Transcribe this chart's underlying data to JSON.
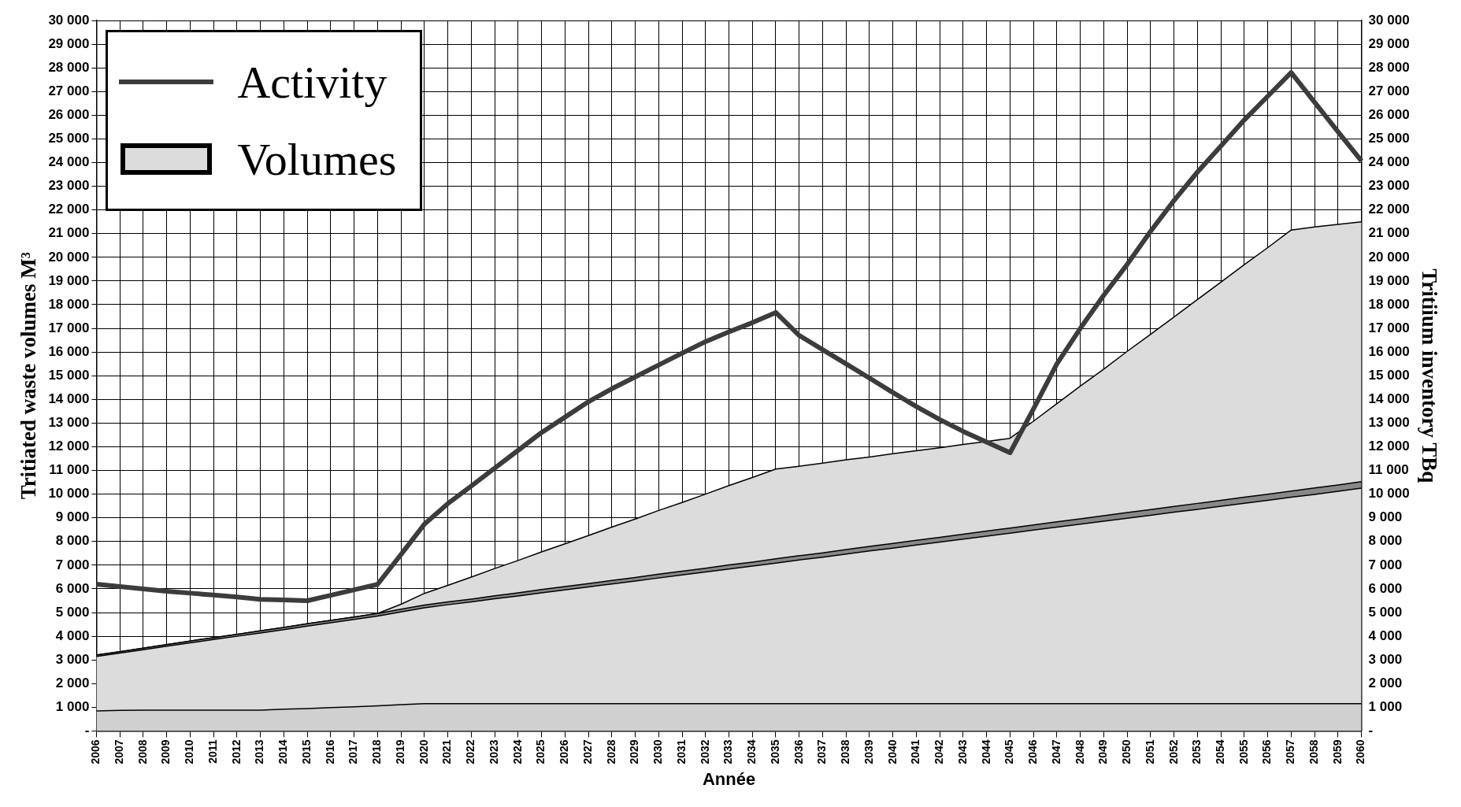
{
  "chart_data": {
    "type": "area",
    "stacked": true,
    "xlabel": "Année",
    "ylabel": "Tritiated waste volumes M³",
    "y2label": "Tritiium inventory TBq",
    "categories": [
      "2006",
      "2007",
      "2008",
      "2009",
      "2010",
      "2011",
      "2012",
      "2013",
      "2014",
      "2015",
      "2016",
      "2017",
      "2018",
      "2019",
      "2020",
      "2021",
      "2022",
      "2023",
      "2024",
      "2025",
      "2026",
      "2027",
      "2028",
      "2029",
      "2030",
      "2031",
      "2032",
      "2033",
      "2034",
      "2035",
      "2036",
      "2037",
      "2038",
      "2039",
      "2040",
      "2041",
      "2042",
      "2043",
      "2044",
      "2045",
      "2046",
      "2047",
      "2048",
      "2049",
      "2050",
      "2051",
      "2052",
      "2053",
      "2054",
      "2055",
      "2056",
      "2057",
      "2058",
      "2059",
      "2060"
    ],
    "series": [
      {
        "color": "#d0d0d0",
        "values": [
          850,
          870,
          880,
          880,
          880,
          880,
          880,
          880,
          920,
          950,
          990,
          1020,
          1060,
          1110,
          1150,
          1150,
          1150,
          1150,
          1150,
          1150,
          1150,
          1150,
          1150,
          1150,
          1150,
          1150,
          1150,
          1150,
          1150,
          1150,
          1150,
          1150,
          1150,
          1150,
          1150,
          1150,
          1150,
          1150,
          1150,
          1150,
          1150,
          1150,
          1150,
          1150,
          1150,
          1150,
          1150,
          1150,
          1150,
          1150,
          1150,
          1150,
          1150,
          1150,
          1150
        ]
      },
      {
        "name": "Volumes",
        "color": "#dcdcdc",
        "values": [
          2300,
          2420,
          2550,
          2700,
          2840,
          2980,
          3120,
          3260,
          3360,
          3480,
          3580,
          3690,
          3790,
          3920,
          4050,
          4180,
          4300,
          4430,
          4550,
          4680,
          4810,
          4930,
          5060,
          5180,
          5310,
          5440,
          5560,
          5690,
          5810,
          5940,
          6070,
          6190,
          6320,
          6450,
          6570,
          6700,
          6830,
          6950,
          7080,
          7200,
          7330,
          7460,
          7580,
          7710,
          7830,
          7960,
          8090,
          8210,
          8340,
          8460,
          8590,
          8720,
          8840,
          8970,
          9100
        ]
      },
      {
        "color": "#888888",
        "values": [
          60,
          60,
          70,
          70,
          80,
          80,
          80,
          90,
          90,
          100,
          100,
          100,
          110,
          110,
          120,
          120,
          120,
          130,
          130,
          140,
          140,
          140,
          150,
          150,
          160,
          160,
          160,
          170,
          170,
          180,
          180,
          180,
          190,
          190,
          200,
          200,
          200,
          210,
          210,
          220,
          220,
          220,
          230,
          230,
          240,
          240,
          240,
          250,
          250,
          260,
          260,
          260,
          270,
          270,
          280
        ]
      },
      {
        "color": "#dcdcdc",
        "values": [
          0,
          0,
          0,
          0,
          0,
          0,
          0,
          0,
          0,
          0,
          0,
          0,
          0,
          210,
          490,
          700,
          930,
          1150,
          1370,
          1590,
          1800,
          2030,
          2250,
          2470,
          2690,
          2900,
          3130,
          3350,
          3570,
          3790,
          3780,
          3790,
          3790,
          3780,
          3790,
          3780,
          3780,
          3790,
          3780,
          3790,
          4380,
          4990,
          5600,
          6190,
          6810,
          7400,
          8000,
          8610,
          9210,
          9820,
          10410,
          11020,
          11020,
          11000,
          10970
        ]
      },
      {
        "name": "Activity",
        "type": "line",
        "axis": "y2",
        "color": "#3c3c3c",
        "values": [
          6200,
          6100,
          6000,
          5900,
          5820,
          5740,
          5660,
          5560,
          5530,
          5500,
          5730,
          5960,
          6190,
          7450,
          8730,
          9600,
          10340,
          11100,
          11850,
          12600,
          13250,
          13900,
          14450,
          14950,
          15450,
          15950,
          16440,
          16850,
          17240,
          17670,
          16700,
          16100,
          15500,
          14900,
          14290,
          13700,
          13150,
          12650,
          12200,
          11750,
          13600,
          15500,
          17000,
          18400,
          19700,
          21100,
          22400,
          23600,
          24700,
          25800,
          26800,
          27800,
          26550,
          25300,
          24070
        ]
      }
    ],
    "ylim": [
      0,
      30000
    ],
    "yticks": [
      {
        "value": 0,
        "label": "-"
      },
      {
        "value": 1000,
        "label": "1 000"
      },
      {
        "value": 2000,
        "label": "2 000"
      },
      {
        "value": 3000,
        "label": "3 000"
      },
      {
        "value": 4000,
        "label": "4 000"
      },
      {
        "value": 5000,
        "label": "5 000"
      },
      {
        "value": 6000,
        "label": "6 000"
      },
      {
        "value": 7000,
        "label": "7 000"
      },
      {
        "value": 8000,
        "label": "8 000"
      },
      {
        "value": 9000,
        "label": "9 000"
      },
      {
        "value": 10000,
        "label": "10 000"
      },
      {
        "value": 11000,
        "label": "11 000"
      },
      {
        "value": 12000,
        "label": "12 000"
      },
      {
        "value": 13000,
        "label": "13 000"
      },
      {
        "value": 14000,
        "label": "14 000"
      },
      {
        "value": 15000,
        "label": "15 000"
      },
      {
        "value": 16000,
        "label": "16 000"
      },
      {
        "value": 17000,
        "label": "17 000"
      },
      {
        "value": 18000,
        "label": "18 000"
      },
      {
        "value": 19000,
        "label": "19 000"
      },
      {
        "value": 20000,
        "label": "20 000"
      },
      {
        "value": 21000,
        "label": "21 000"
      },
      {
        "value": 22000,
        "label": "22 000"
      },
      {
        "value": 23000,
        "label": "23 000"
      },
      {
        "value": 24000,
        "label": "24 000"
      },
      {
        "value": 25000,
        "label": "25 000"
      },
      {
        "value": 26000,
        "label": "26 000"
      },
      {
        "value": 27000,
        "label": "27 000"
      },
      {
        "value": 28000,
        "label": "28 000"
      },
      {
        "value": 29000,
        "label": "29 000"
      },
      {
        "value": 30000,
        "label": "30 000"
      }
    ],
    "y2lim": [
      0,
      30000
    ],
    "y2ticks": [
      {
        "value": 0,
        "label": "-"
      },
      {
        "value": 1000,
        "label": "1 000"
      },
      {
        "value": 2000,
        "label": "2 000"
      },
      {
        "value": 3000,
        "label": "3 000"
      },
      {
        "value": 4000,
        "label": "4 000"
      },
      {
        "value": 5000,
        "label": "5 000"
      },
      {
        "value": 6000,
        "label": "6 000"
      },
      {
        "value": 7000,
        "label": "7 000"
      },
      {
        "value": 8000,
        "label": "8 000"
      },
      {
        "value": 9000,
        "label": "9 000"
      },
      {
        "value": 10000,
        "label": "10 000"
      },
      {
        "value": 11000,
        "label": "11 000"
      },
      {
        "value": 12000,
        "label": "12 000"
      },
      {
        "value": 13000,
        "label": "13 000"
      },
      {
        "value": 14000,
        "label": "14 000"
      },
      {
        "value": 15000,
        "label": "15 000"
      },
      {
        "value": 16000,
        "label": "16 000"
      },
      {
        "value": 17000,
        "label": "17 000"
      },
      {
        "value": 18000,
        "label": "18 000"
      },
      {
        "value": 19000,
        "label": "19 000"
      },
      {
        "value": 20000,
        "label": "20 000"
      },
      {
        "value": 21000,
        "label": "21 000"
      },
      {
        "value": 22000,
        "label": "22 000"
      },
      {
        "value": 23000,
        "label": "23 000"
      },
      {
        "value": 24000,
        "label": "24 000"
      },
      {
        "value": 25000,
        "label": "25 000"
      },
      {
        "value": 26000,
        "label": "26 000"
      },
      {
        "value": 27000,
        "label": "27 000"
      },
      {
        "value": 28000,
        "label": "28 000"
      },
      {
        "value": 29000,
        "label": "29 000"
      },
      {
        "value": 30000,
        "label": "30 000"
      }
    ],
    "grid": true,
    "legend": "top left"
  }
}
